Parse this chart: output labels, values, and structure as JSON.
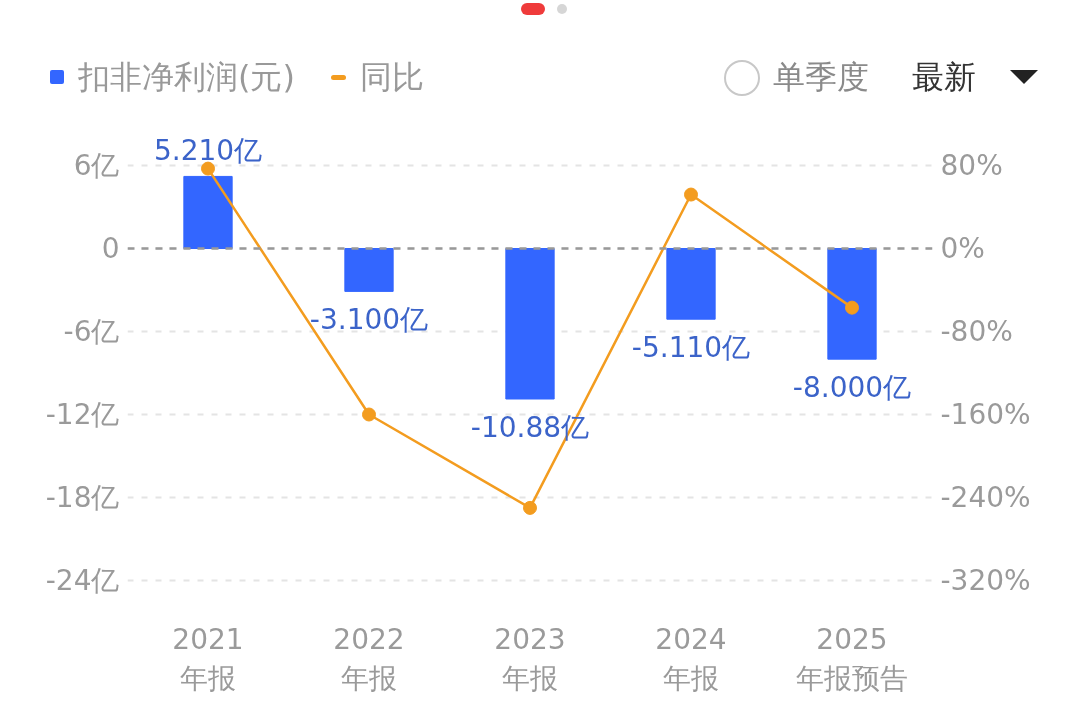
{
  "chart_data": {
    "type": "bar",
    "categories": [
      "2021\n年报",
      "2022\n年报",
      "2023\n年报",
      "2024\n年报",
      "2025\n年报预告"
    ],
    "series": [
      {
        "name": "扣非净利润(元)",
        "color": "#3366ff",
        "values": [
          5.21,
          -3.1,
          -10.88,
          -5.11,
          -8.0
        ],
        "value_labels": [
          "5.210亿",
          "-3.100亿",
          "-10.88亿",
          "-5.110亿",
          "-8.000亿"
        ]
      },
      {
        "name": "同比",
        "type": "line",
        "axis": "y2",
        "color": "#f39c1f",
        "marker": "circle",
        "values": [
          77,
          -160,
          -250,
          52,
          -57
        ]
      }
    ],
    "ylim": [
      -24,
      6
    ],
    "yticks": [
      {
        "value": 6,
        "label": "6亿"
      },
      0,
      {
        "value": -6,
        "label": "-6亿"
      },
      {
        "value": -12,
        "label": "-12亿"
      },
      {
        "value": -18,
        "label": "-18亿"
      },
      {
        "value": -24,
        "label": "-24亿"
      }
    ],
    "y2lim": [
      -320,
      80
    ],
    "y2ticks": [
      {
        "value": 80,
        "label": "80%"
      },
      {
        "value": 0,
        "label": "0%"
      },
      {
        "value": -80,
        "label": "-80%"
      },
      {
        "value": -160,
        "label": "-160%"
      },
      {
        "value": -240,
        "label": "-240%"
      },
      {
        "value": -320,
        "label": "-320%"
      }
    ],
    "ref_lines": [
      {
        "axis": "y",
        "value": 0,
        "color": "#999999",
        "line_style": "dashed"
      }
    ],
    "grid": "y",
    "legend": "top left",
    "annotations": [
      "单季度",
      "最新"
    ]
  }
}
